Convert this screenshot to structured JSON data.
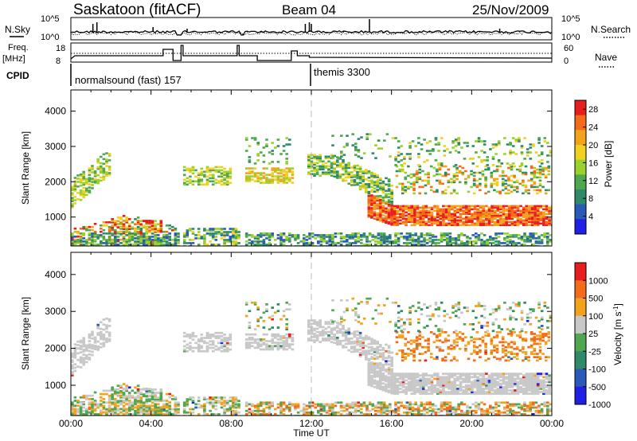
{
  "header": {
    "station": "Saskatoon (fitACF)",
    "beam": "Beam 04",
    "date": "25/Nov/2009"
  },
  "params": {
    "nsky_label": "N.Sky",
    "nsearch_label": "N.Search",
    "freq_label_1": "Freq.",
    "freq_label_2": "[MHz]",
    "nave_label": "Nave",
    "cpid_label": "CPID",
    "cpid_left_ticks": [
      "10^5",
      "10^0"
    ],
    "cpid_right_ticks": [
      "10^5",
      "10^0"
    ],
    "freq_ticks": [
      "18",
      "8"
    ],
    "nave_ticks": [
      "60",
      "0"
    ],
    "mode_1": "normalsound (fast) 157",
    "mode_2": "themis 3300"
  },
  "chart_data": [
    {
      "type": "heatmap",
      "title": "",
      "xlabel": "Time UT",
      "ylabel": "Slant Range [km]",
      "x_ticks": [
        "00:00",
        "04:00",
        "08:00",
        "12:00",
        "16:00",
        "20:00",
        "00:00"
      ],
      "x_range_hours": [
        0,
        24
      ],
      "y_ticks": [
        "1000",
        "2000",
        "3000",
        "4000"
      ],
      "y_range_km": [
        180,
        4600
      ],
      "colorbar": {
        "label": "Power [dB]",
        "ticks": [
          "4",
          "8",
          "12",
          "16",
          "20",
          "24",
          "28"
        ],
        "range": [
          0,
          30
        ],
        "colors": [
          "#1f1fe6",
          "#2a5ab8",
          "#2f8a6a",
          "#4fa84f",
          "#9ad12a",
          "#f0d020",
          "#f3a21e",
          "#f36b1b",
          "#e81e1e"
        ]
      },
      "scatter_echo_bands": [
        {
          "t": [
            0.0,
            2.0
          ],
          "range_km": [
            1300,
            3000
          ]
        },
        {
          "t": [
            1.0,
            4.5
          ],
          "range_km": [
            300,
            1100
          ]
        },
        {
          "t": [
            5.5,
            7.5
          ],
          "range_km": [
            1900,
            2700
          ]
        },
        {
          "t": [
            8.8,
            11.0
          ],
          "range_km": [
            1900,
            2600
          ]
        },
        {
          "t": [
            12.0,
            16.0
          ],
          "range_km": [
            1500,
            2700
          ]
        },
        {
          "t": [
            14.5,
            24.0
          ],
          "range_km": [
            750,
            1600
          ]
        },
        {
          "t": [
            16.0,
            24.0
          ],
          "range_km": [
            1700,
            3200
          ]
        }
      ]
    },
    {
      "type": "heatmap",
      "title": "",
      "xlabel": "Time UT",
      "ylabel": "Slant Range [km]",
      "x_ticks": [
        "00:00",
        "04:00",
        "08:00",
        "12:00",
        "16:00",
        "20:00",
        "00:00"
      ],
      "x_range_hours": [
        0,
        24
      ],
      "y_ticks": [
        "1000",
        "2000",
        "3000",
        "4000"
      ],
      "y_range_km": [
        180,
        4600
      ],
      "colorbar": {
        "label": "Velocity [m s^-1]",
        "ticks": [
          "1000",
          "500",
          "100",
          "25",
          "-25",
          "-100",
          "-500",
          "-1000"
        ],
        "range": [
          -1000,
          1000
        ],
        "colors": [
          "#1f1fe6",
          "#2a5ab8",
          "#2f8a6a",
          "#4fa84f",
          "#c8c8c8",
          "#f3a21e",
          "#f36b1b",
          "#e81e1e"
        ]
      }
    }
  ]
}
